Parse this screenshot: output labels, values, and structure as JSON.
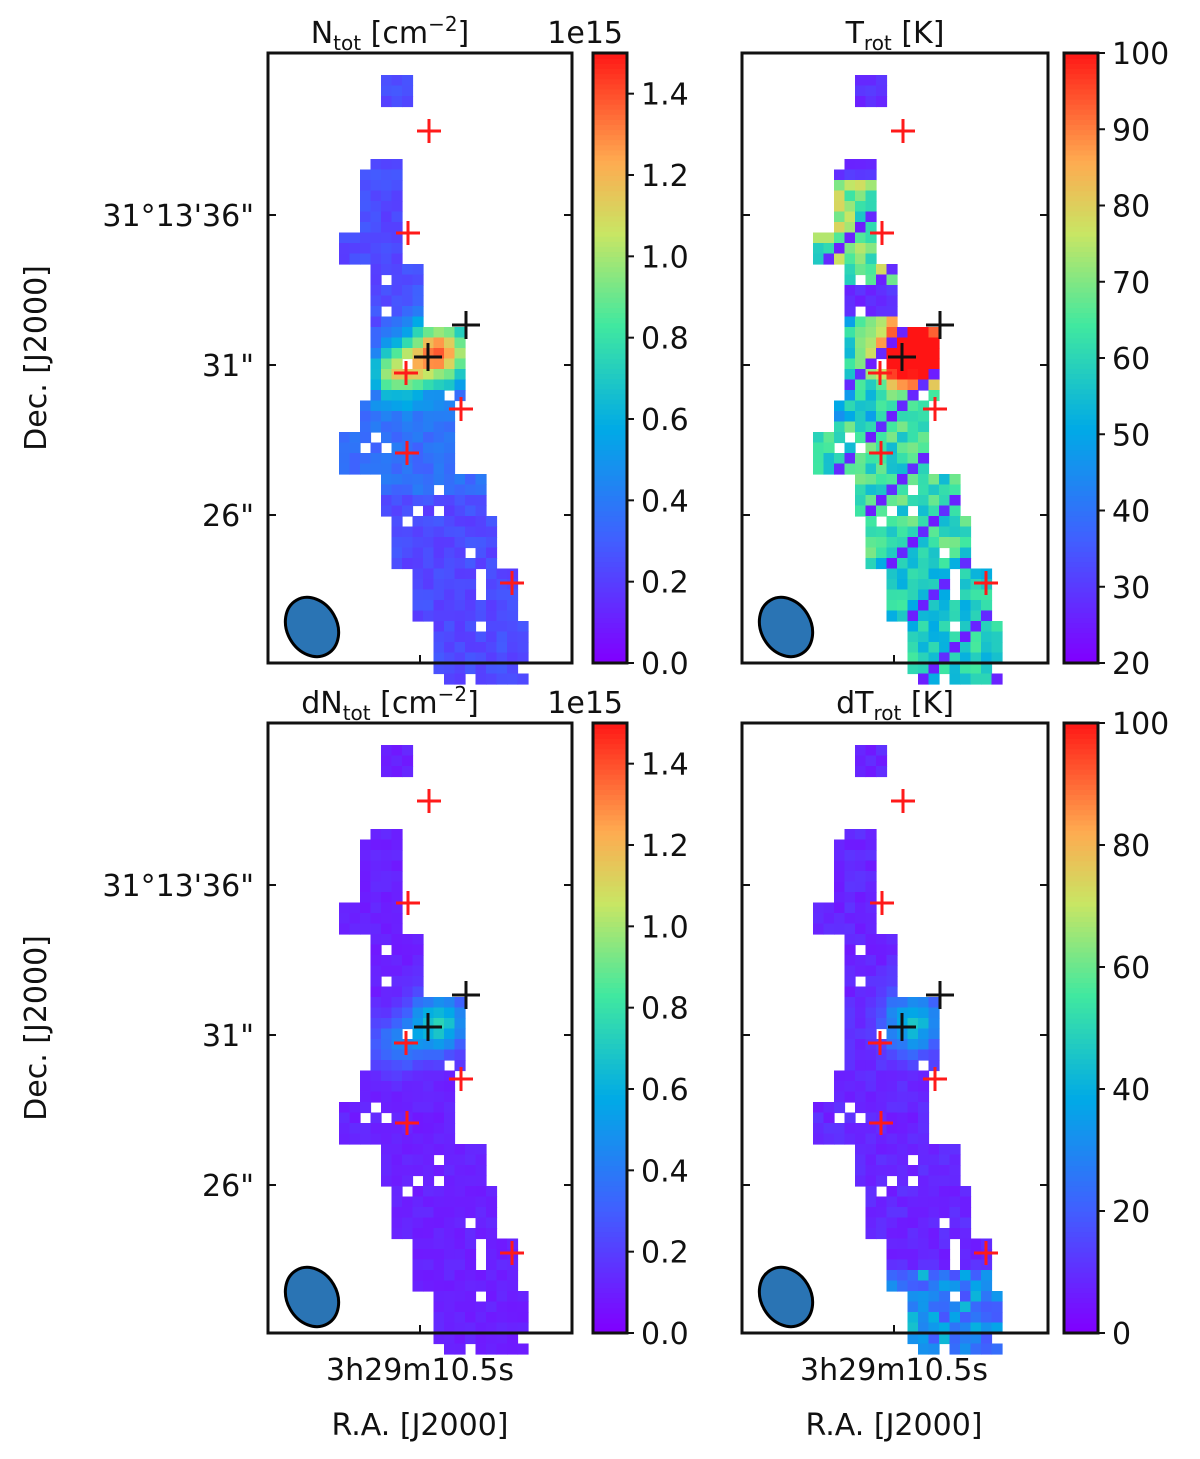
{
  "figure": {
    "ylabel": "Dec. [J2000]",
    "xlabel": "R.A. [J2000]",
    "ra_tick": "3h29m10.5s",
    "dec_ticks": [
      "31°13'36\"",
      "31\"",
      "26\""
    ]
  },
  "chart_data": [
    {
      "type": "heatmap",
      "title_main": "N",
      "title_sub": "tot",
      "title_unit": "[cm",
      "title_exp": "−2",
      "title_close": "]",
      "offset_text": "1e15",
      "colorbar": {
        "min": 0.0,
        "max": 1.5,
        "ticks": [
          0.0,
          0.2,
          0.4,
          0.6,
          0.8,
          1.0,
          1.2,
          1.4
        ],
        "tick_labels": [
          "0.0",
          "0.2",
          "0.4",
          "0.6",
          "0.8",
          "1.0",
          "1.2",
          "1.4"
        ]
      },
      "field": "ntot",
      "xlabel": "",
      "ylabel": "Dec. [J2000]"
    },
    {
      "type": "heatmap",
      "title_main": "T",
      "title_sub": "rot",
      "title_unit": "[K]",
      "title_exp": "",
      "title_close": "",
      "offset_text": "",
      "colorbar": {
        "min": 20,
        "max": 100,
        "ticks": [
          20,
          30,
          40,
          50,
          60,
          70,
          80,
          90,
          100
        ],
        "tick_labels": [
          "20",
          "30",
          "40",
          "50",
          "60",
          "70",
          "80",
          "90",
          "100"
        ]
      },
      "field": "trot",
      "xlabel": "",
      "ylabel": ""
    },
    {
      "type": "heatmap",
      "title_main": "dN",
      "title_sub": "tot",
      "title_unit": "[cm",
      "title_exp": "−2",
      "title_close": "]",
      "offset_text": "1e15",
      "colorbar": {
        "min": 0.0,
        "max": 1.5,
        "ticks": [
          0.0,
          0.2,
          0.4,
          0.6,
          0.8,
          1.0,
          1.2,
          1.4
        ],
        "tick_labels": [
          "0.0",
          "0.2",
          "0.4",
          "0.6",
          "0.8",
          "1.0",
          "1.2",
          "1.4"
        ]
      },
      "field": "dntot",
      "xlabel": "R.A. [J2000]",
      "ylabel": "Dec. [J2000]"
    },
    {
      "type": "heatmap",
      "title_main": "dT",
      "title_sub": "rot",
      "title_unit": "[K]",
      "title_exp": "",
      "title_close": "",
      "offset_text": "",
      "colorbar": {
        "min": 0,
        "max": 100,
        "ticks": [
          0,
          20,
          40,
          60,
          80,
          100
        ],
        "tick_labels": [
          "0",
          "20",
          "40",
          "60",
          "80",
          "100"
        ]
      },
      "field": "dtrot",
      "xlabel": "R.A. [J2000]",
      "ylabel": ""
    }
  ],
  "markers": {
    "red_color": "#ff1a1a",
    "black_color": "#111111",
    "red_count": 7,
    "black_count": 2
  },
  "beam_color": "#2a74b4"
}
